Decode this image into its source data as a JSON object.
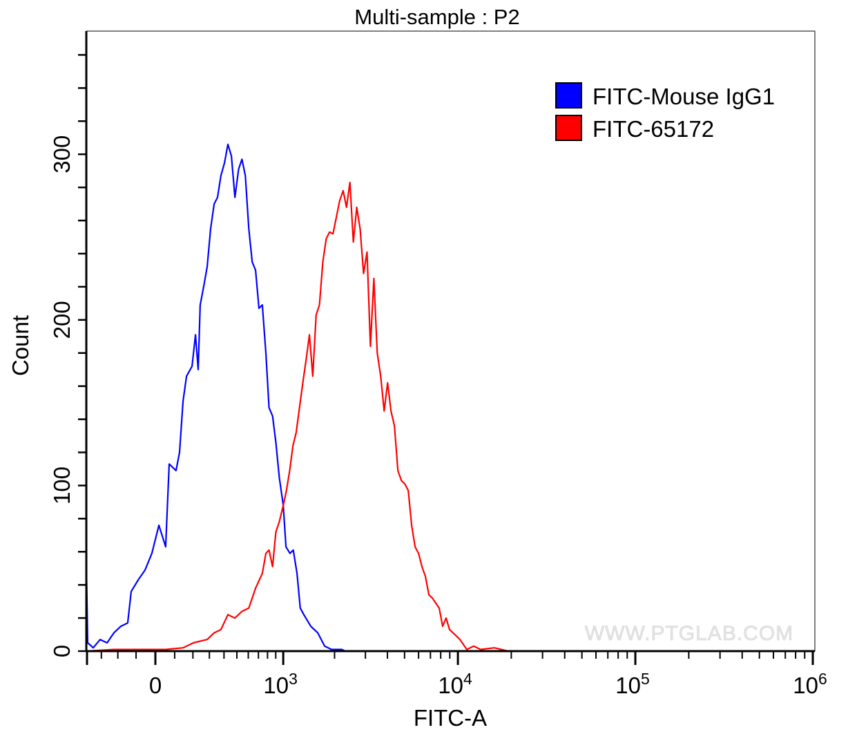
{
  "chart_data": {
    "type": "line",
    "title": "Multi-sample : P2",
    "xlabel": "FITC-A",
    "ylabel": "Count",
    "x_scale": "biexponential",
    "xlim": [
      -400,
      1000000
    ],
    "ylim": [
      0,
      373
    ],
    "x_ticks": [
      {
        "value": 0,
        "base": "0",
        "exp": ""
      },
      {
        "value": 1000,
        "base": "10",
        "exp": "3"
      },
      {
        "value": 10000,
        "base": "10",
        "exp": "4"
      },
      {
        "value": 100000,
        "base": "10",
        "exp": "5"
      },
      {
        "value": 1000000,
        "base": "10",
        "exp": "6"
      }
    ],
    "y_ticks": [
      {
        "value": 0,
        "label": "0"
      },
      {
        "value": 100,
        "label": "100"
      },
      {
        "value": 200,
        "label": "200"
      },
      {
        "value": 300,
        "label": "300"
      }
    ],
    "grid": false,
    "legend_position": "top-right",
    "watermark": "WWW.PTGLAB.COM",
    "series": [
      {
        "name": "FITC-Mouse IgG1",
        "color": "#0000ff",
        "points": [
          [
            -404,
            59
          ],
          [
            -393,
            5
          ],
          [
            -354,
            2
          ],
          [
            -308,
            7
          ],
          [
            -264,
            5
          ],
          [
            -223,
            11
          ],
          [
            -183,
            15
          ],
          [
            -145,
            17
          ],
          [
            -126,
            36
          ],
          [
            -89,
            43
          ],
          [
            -53,
            49
          ],
          [
            -18,
            59
          ],
          [
            18,
            76
          ],
          [
            53,
            63
          ],
          [
            71,
            113
          ],
          [
            107,
            109
          ],
          [
            126,
            120
          ],
          [
            145,
            151
          ],
          [
            164,
            166
          ],
          [
            195,
            172
          ],
          [
            215,
            191
          ],
          [
            231,
            170
          ],
          [
            243,
            209
          ],
          [
            264,
            220
          ],
          [
            286,
            232
          ],
          [
            308,
            255
          ],
          [
            331,
            270
          ],
          [
            354,
            274
          ],
          [
            378,
            287
          ],
          [
            404,
            295
          ],
          [
            429,
            306
          ],
          [
            456,
            299
          ],
          [
            484,
            274
          ],
          [
            514,
            291
          ],
          [
            543,
            297
          ],
          [
            573,
            287
          ],
          [
            605,
            255
          ],
          [
            637,
            235
          ],
          [
            671,
            230
          ],
          [
            706,
            207
          ],
          [
            742,
            209
          ],
          [
            781,
            180
          ],
          [
            818,
            147
          ],
          [
            860,
            142
          ],
          [
            902,
            126
          ],
          [
            946,
            105
          ],
          [
            1000,
            88
          ],
          [
            1039,
            63
          ],
          [
            1098,
            59
          ],
          [
            1149,
            61
          ],
          [
            1209,
            47
          ],
          [
            1264,
            26
          ],
          [
            1327,
            22
          ],
          [
            1458,
            15
          ],
          [
            1600,
            11
          ],
          [
            1754,
            3
          ],
          [
            1924,
            1
          ],
          [
            2200,
            1
          ],
          [
            2303,
            0
          ]
        ]
      },
      {
        "name": "FITC-65172",
        "color": "#ff0000",
        "points": [
          [
            -404,
            0
          ],
          [
            -223,
            1
          ],
          [
            -89,
            1
          ],
          [
            53,
            1
          ],
          [
            145,
            2
          ],
          [
            203,
            5
          ],
          [
            243,
            6
          ],
          [
            286,
            7
          ],
          [
            331,
            11
          ],
          [
            378,
            13
          ],
          [
            429,
            22
          ],
          [
            484,
            20
          ],
          [
            543,
            24
          ],
          [
            605,
            26
          ],
          [
            671,
            38
          ],
          [
            742,
            47
          ],
          [
            781,
            59
          ],
          [
            818,
            61
          ],
          [
            860,
            51
          ],
          [
            902,
            72
          ],
          [
            946,
            78
          ],
          [
            1000,
            88
          ],
          [
            1046,
            97
          ],
          [
            1094,
            109
          ],
          [
            1144,
            124
          ],
          [
            1196,
            132
          ],
          [
            1251,
            147
          ],
          [
            1308,
            162
          ],
          [
            1368,
            176
          ],
          [
            1431,
            191
          ],
          [
            1496,
            166
          ],
          [
            1565,
            203
          ],
          [
            1637,
            209
          ],
          [
            1712,
            235
          ],
          [
            1790,
            249
          ],
          [
            1872,
            253
          ],
          [
            1958,
            252
          ],
          [
            2048,
            262
          ],
          [
            2141,
            272
          ],
          [
            2239,
            278
          ],
          [
            2342,
            268
          ],
          [
            2449,
            283
          ],
          [
            2561,
            247
          ],
          [
            2679,
            268
          ],
          [
            2801,
            255
          ],
          [
            2930,
            228
          ],
          [
            3064,
            241
          ],
          [
            3204,
            184
          ],
          [
            3351,
            225
          ],
          [
            3504,
            180
          ],
          [
            3665,
            166
          ],
          [
            3833,
            145
          ],
          [
            4008,
            162
          ],
          [
            4192,
            145
          ],
          [
            4384,
            136
          ],
          [
            4585,
            109
          ],
          [
            4795,
            103
          ],
          [
            5014,
            101
          ],
          [
            5244,
            97
          ],
          [
            5484,
            76
          ],
          [
            5735,
            63
          ],
          [
            5998,
            59
          ],
          [
            6273,
            51
          ],
          [
            6560,
            45
          ],
          [
            6860,
            34
          ],
          [
            7175,
            32
          ],
          [
            7847,
            26
          ],
          [
            8206,
            15
          ],
          [
            8582,
            20
          ],
          [
            8975,
            13
          ],
          [
            9390,
            11
          ],
          [
            10270,
            7
          ],
          [
            11230,
            1
          ],
          [
            12280,
            3
          ],
          [
            13430,
            1
          ],
          [
            16060,
            2
          ],
          [
            19200,
            0
          ]
        ]
      }
    ]
  }
}
